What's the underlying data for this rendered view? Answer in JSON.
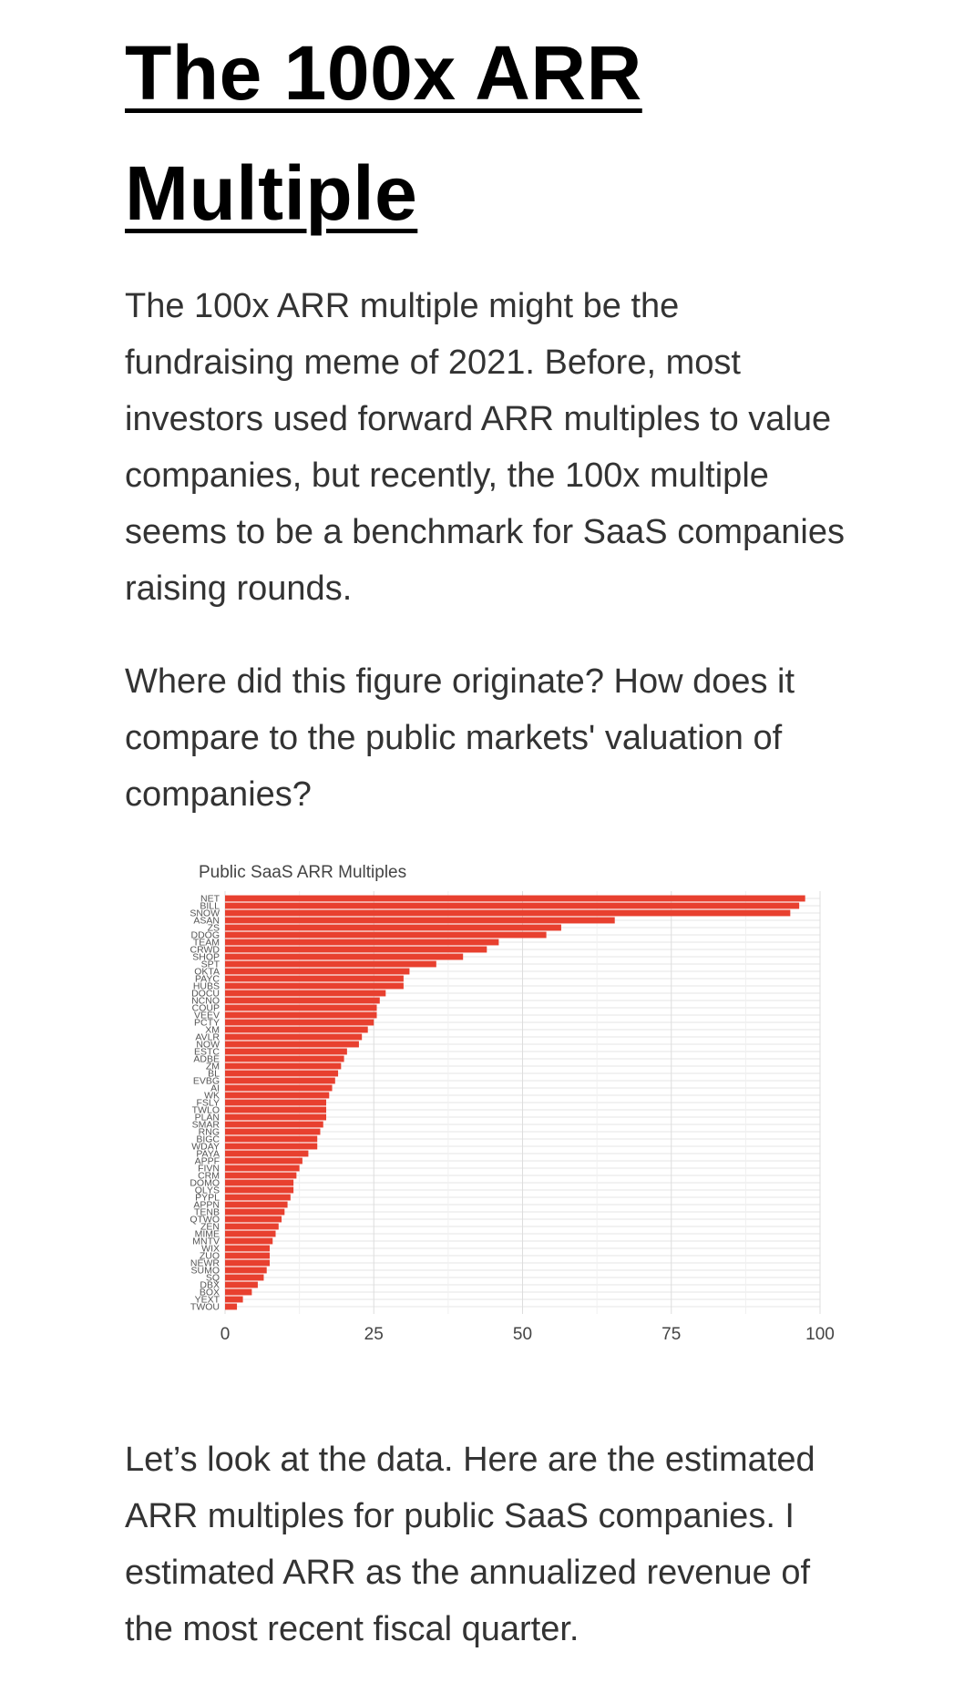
{
  "article": {
    "title": "The 100x ARR Multiple",
    "paragraphs": [
      "The 100x ARR multiple might be the fundraising meme of 2021. Before, most investors used forward ARR multiples to value companies, but recently, the 100x multiple seems to be a benchmark for SaaS companies raising rounds.",
      "Where did this figure originate? How does it compare to the public markets' valuation of companies?",
      "Let’s look at the data. Here are the estimated ARR multiples for public SaaS companies. I estimated ARR as the annualized revenue of the most recent fiscal quarter."
    ]
  },
  "colors": {
    "bar": "#e8402f",
    "grid": "#e6e6e6",
    "text": "#444444"
  },
  "chart_data": {
    "type": "bar",
    "orientation": "horizontal",
    "title": "Public SaaS ARR Multiples",
    "xlabel": "",
    "ylabel": "",
    "xlim": [
      0,
      100
    ],
    "x_ticks": [
      0,
      25,
      50,
      75,
      100
    ],
    "grid": true,
    "legend": "none",
    "categories": [
      "NET",
      "BILL",
      "SNOW",
      "ASAN",
      "ZS",
      "DDOG",
      "TEAM",
      "CRWD",
      "SHOP",
      "SPT",
      "OKTA",
      "PAYC",
      "HUBS",
      "DOCU",
      "NCNO",
      "COUP",
      "VEEV",
      "PCTY",
      "XM",
      "AVLR",
      "NOW",
      "ESTC",
      "ADBE",
      "ZM",
      "BL",
      "EVBG",
      "AI",
      "WK",
      "FSLY",
      "TWLO",
      "PLAN",
      "SMAR",
      "RNG",
      "BIGC",
      "WDAY",
      "PAYA",
      "APPF",
      "FIVN",
      "CRM",
      "DOMO",
      "QLYS",
      "PYPL",
      "APPN",
      "TENB",
      "QTWO",
      "ZEN",
      "MIME",
      "MNTV",
      "WIX",
      "ZUO",
      "NEWR",
      "SUMO",
      "SQ",
      "DBX",
      "BOX",
      "YEXT",
      "TWOU"
    ],
    "values": [
      97.5,
      96.5,
      95,
      65.5,
      56.5,
      54,
      46,
      44,
      40,
      35.5,
      31,
      30,
      30,
      27,
      26,
      25.5,
      25.5,
      25,
      24,
      23,
      22.5,
      20.5,
      20,
      19.5,
      19,
      18.5,
      18,
      17.5,
      17,
      17,
      17,
      16.5,
      16,
      15.5,
      15.5,
      14,
      13,
      12.5,
      12,
      11.5,
      11.5,
      11,
      10.5,
      10,
      9.5,
      9,
      8.5,
      8,
      7.5,
      7.5,
      7.5,
      7,
      6.5,
      5.5,
      4.5,
      3,
      2
    ]
  }
}
